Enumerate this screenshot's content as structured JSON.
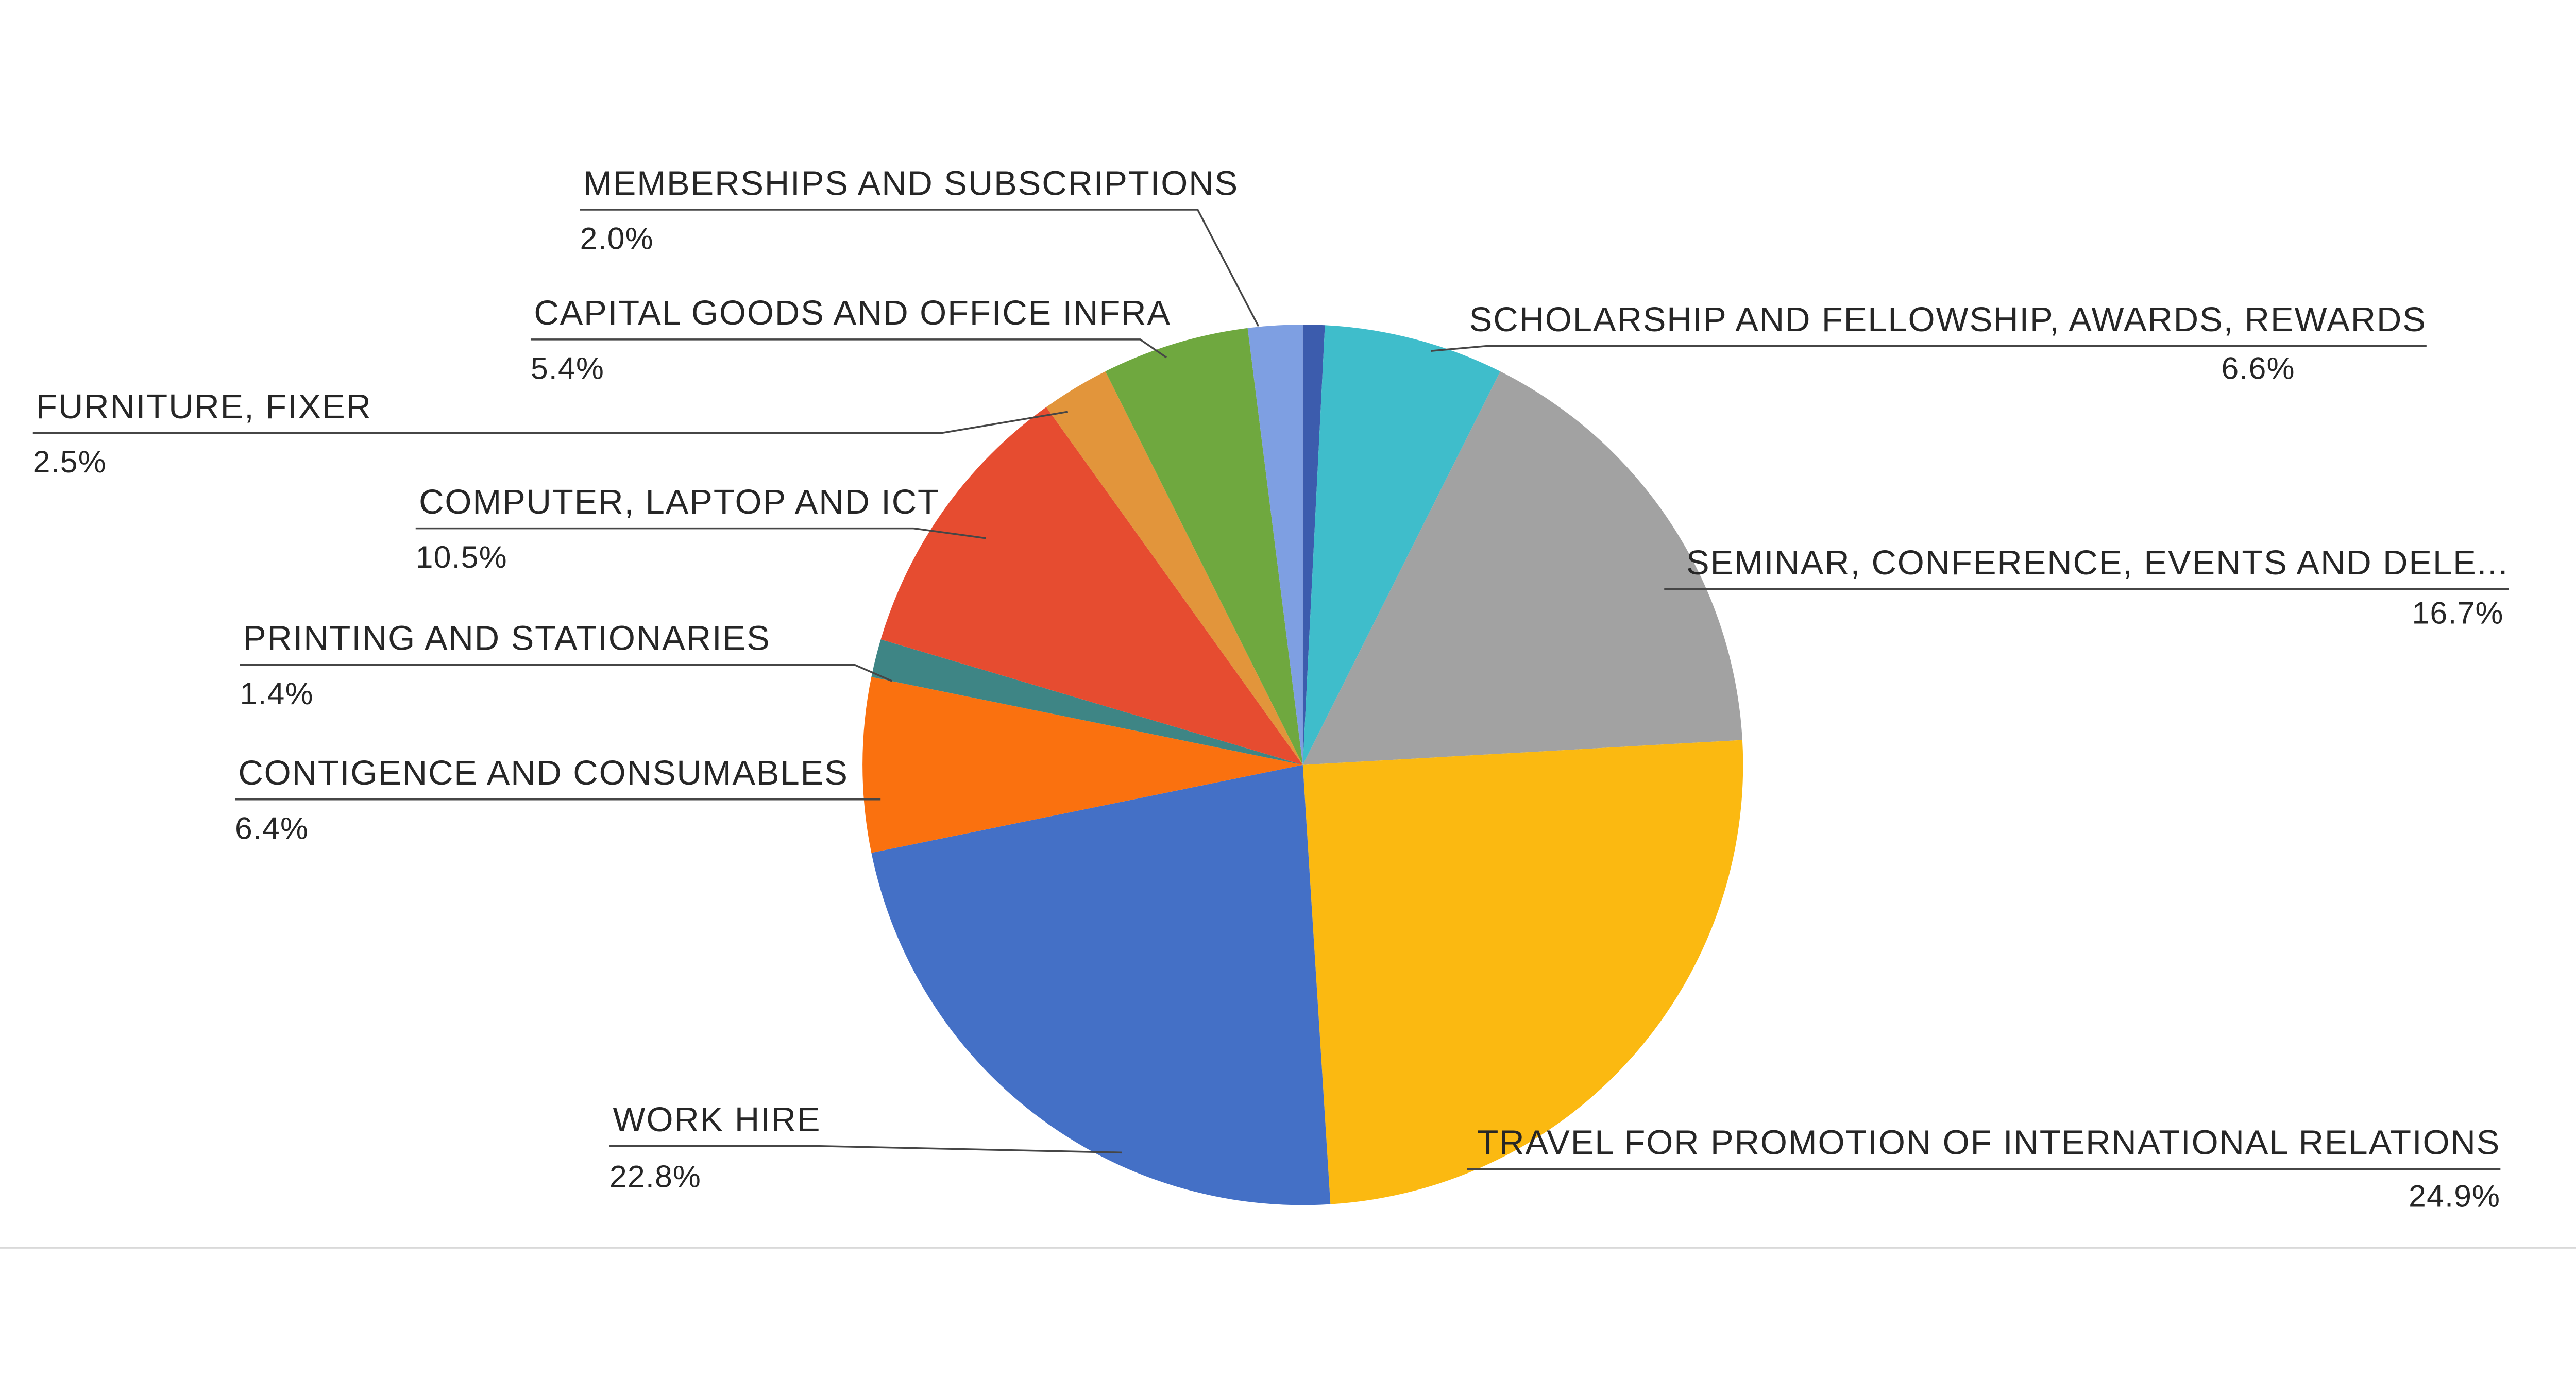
{
  "chart_data": {
    "type": "pie",
    "title": "",
    "legend_position": "none",
    "background": "#FFFFFF",
    "slices": [
      {
        "label": "",
        "value": 0.8,
        "pct_label": "",
        "color": "#3C5CAD"
      },
      {
        "label": "SCHOLARSHIP AND FELLOWSHIP, AWARDS, REWARDS",
        "value": 6.6,
        "pct_label": "6.6%",
        "color": "#3FBDCB"
      },
      {
        "label": "SEMINAR, CONFERENCE, EVENTS AND DELE...",
        "value": 16.7,
        "pct_label": "16.7%",
        "color": "#A2A2A2"
      },
      {
        "label": "TRAVEL FOR PROMOTION OF INTERNATIONAL RELATIONS",
        "value": 24.9,
        "pct_label": "24.9%",
        "color": "#FBB911"
      },
      {
        "label": "WORK HIRE",
        "value": 22.8,
        "pct_label": "22.8%",
        "color": "#4470C6"
      },
      {
        "label": "CONTIGENCE AND CONSUMABLES",
        "value": 6.4,
        "pct_label": "6.4%",
        "color": "#FA710F"
      },
      {
        "label": "PRINTING AND STATIONARIES",
        "value": 1.4,
        "pct_label": "1.4%",
        "color": "#3E8585"
      },
      {
        "label": "COMPUTER, LAPTOP AND ICT",
        "value": 10.5,
        "pct_label": "10.5%",
        "color": "#E64C30"
      },
      {
        "label": "FURNITURE, FIXER",
        "value": 2.5,
        "pct_label": "2.5%",
        "color": "#E2953B"
      },
      {
        "label": "CAPITAL GOODS AND OFFICE INFRA",
        "value": 5.4,
        "pct_label": "5.4%",
        "color": "#6FA83F"
      },
      {
        "label": "MEMBERSHIPS AND SUBSCRIPTIONS",
        "value": 2.0,
        "pct_label": "2.0%",
        "color": "#7E9FE2"
      }
    ]
  }
}
